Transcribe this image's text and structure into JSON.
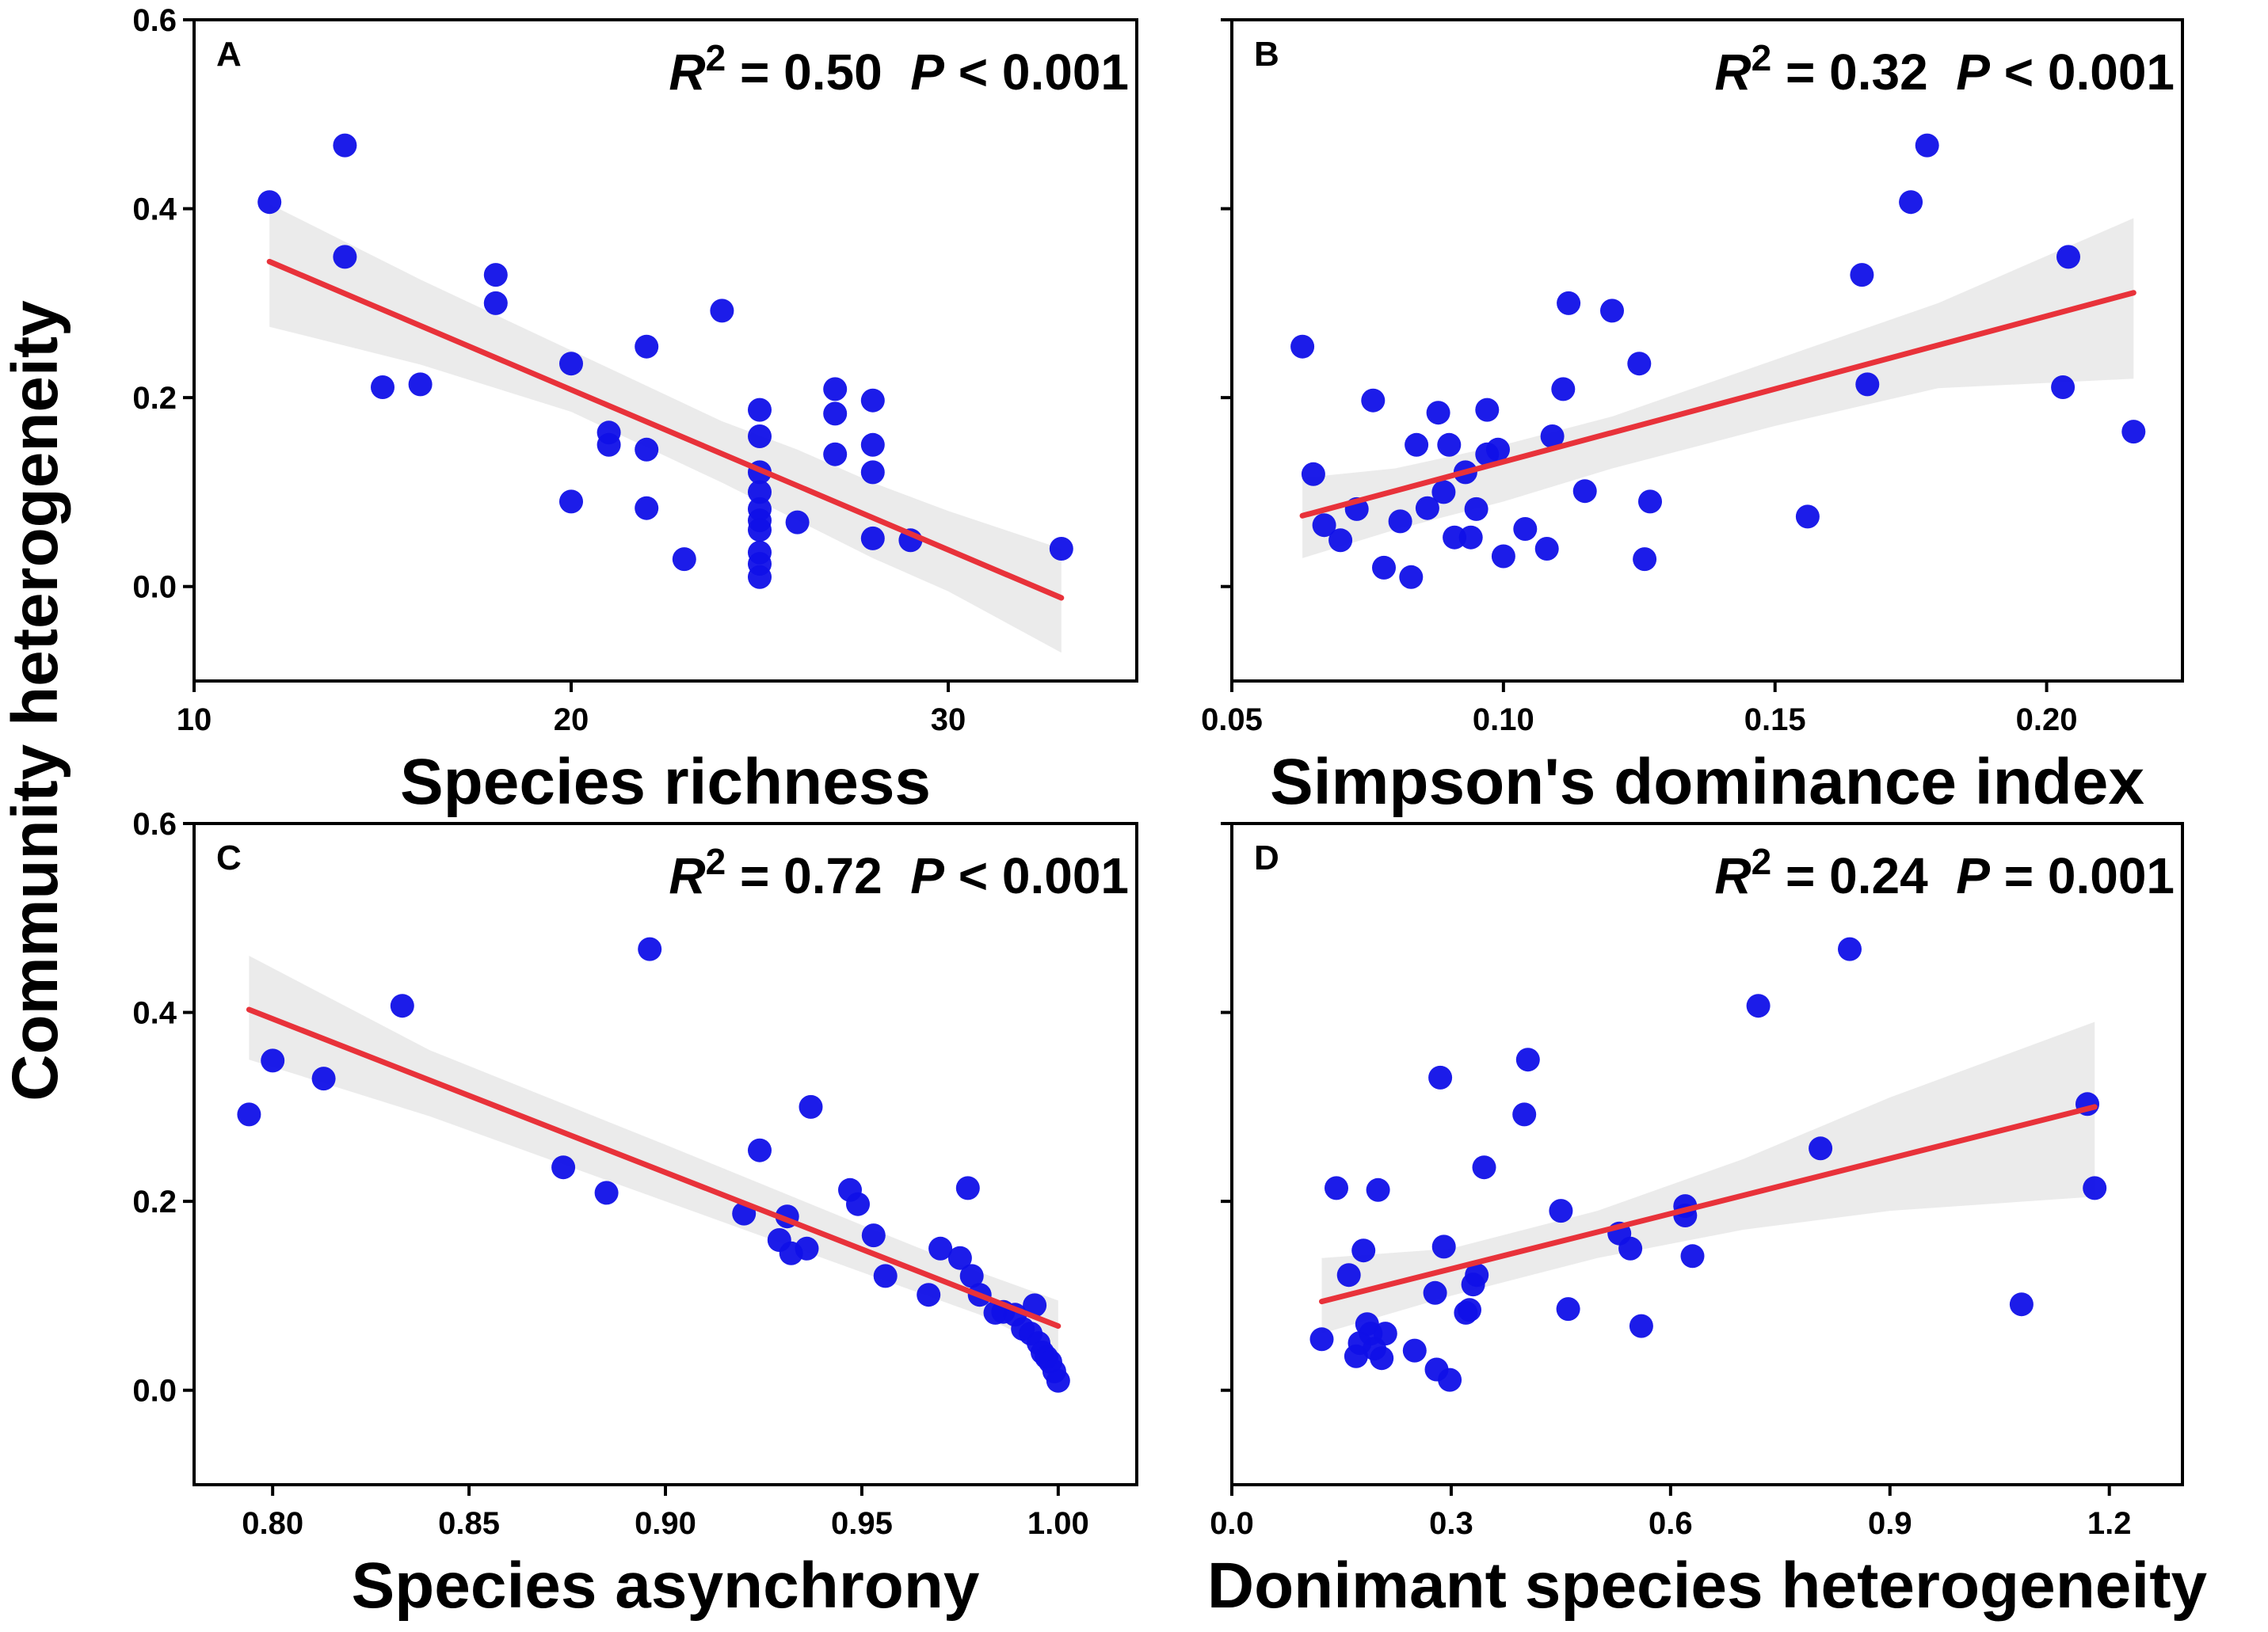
{
  "y_axis_label": "Community heterogeneity",
  "chart_data": [
    {
      "type": "scatter",
      "panel": "A",
      "xlabel": "Species richness",
      "ylabel": "Community heterogeneity",
      "xlim": [
        10,
        35
      ],
      "ylim": [
        -0.1,
        0.6
      ],
      "xticks": [
        10,
        20,
        30
      ],
      "xtick_labels": [
        "10",
        "20",
        "30"
      ],
      "yticks": [
        0.0,
        0.2,
        0.4,
        0.6
      ],
      "ytick_labels": [
        "0.0",
        "0.2",
        "0.4",
        "0.6"
      ],
      "stats": {
        "r2_label": "R",
        "r2_sup": "2",
        "r2_value": " = 0.50",
        "p_label": "P",
        "p_value": " < 0.001"
      },
      "points": [
        [
          12,
          0.407
        ],
        [
          14,
          0.467
        ],
        [
          14,
          0.349
        ],
        [
          15,
          0.211
        ],
        [
          16,
          0.214
        ],
        [
          18,
          0.33
        ],
        [
          18,
          0.3
        ],
        [
          20,
          0.236
        ],
        [
          20,
          0.09
        ],
        [
          21,
          0.163
        ],
        [
          21,
          0.15
        ],
        [
          22,
          0.254
        ],
        [
          22,
          0.145
        ],
        [
          22,
          0.083
        ],
        [
          23,
          0.029
        ],
        [
          24,
          0.292
        ],
        [
          25,
          0.187
        ],
        [
          25,
          0.159
        ],
        [
          25,
          0.121
        ],
        [
          25,
          0.1
        ],
        [
          25,
          0.082
        ],
        [
          25,
          0.07
        ],
        [
          25,
          0.06
        ],
        [
          25,
          0.036
        ],
        [
          25,
          0.024
        ],
        [
          25,
          0.01
        ],
        [
          26,
          0.068
        ],
        [
          27,
          0.209
        ],
        [
          27,
          0.183
        ],
        [
          27,
          0.14
        ],
        [
          28,
          0.197
        ],
        [
          28,
          0.15
        ],
        [
          28,
          0.121
        ],
        [
          28,
          0.051
        ],
        [
          29,
          0.049
        ],
        [
          33,
          0.04
        ]
      ],
      "fit": {
        "x": [
          12,
          33
        ],
        "y": [
          0.344,
          -0.012
        ]
      },
      "ci": {
        "x": [
          12,
          16,
          20,
          24,
          26,
          28,
          30,
          33
        ],
        "lower": [
          0.275,
          0.235,
          0.185,
          0.11,
          0.07,
          0.03,
          -0.005,
          -0.07
        ],
        "upper": [
          0.405,
          0.325,
          0.25,
          0.175,
          0.145,
          0.11,
          0.08,
          0.04
        ]
      }
    },
    {
      "type": "scatter",
      "panel": "B",
      "xlabel": "Simpson's dominance index",
      "ylabel": "Community heterogeneity",
      "xlim": [
        0.05,
        0.225
      ],
      "ylim": [
        -0.1,
        0.6
      ],
      "xticks": [
        0.05,
        0.1,
        0.15,
        0.2
      ],
      "xtick_labels": [
        "0.05",
        "0.10",
        "0.15",
        "0.20"
      ],
      "yticks": [
        0.0,
        0.2,
        0.4,
        0.6
      ],
      "ytick_labels": [
        "",
        "",
        "",
        ""
      ],
      "stats": {
        "r2_label": "R",
        "r2_sup": "2",
        "r2_value": " = 0.32",
        "p_label": "P",
        "p_value": " < 0.001"
      },
      "points": [
        [
          0.063,
          0.254
        ],
        [
          0.065,
          0.119
        ],
        [
          0.067,
          0.065
        ],
        [
          0.07,
          0.049
        ],
        [
          0.073,
          0.082
        ],
        [
          0.076,
          0.197
        ],
        [
          0.078,
          0.02
        ],
        [
          0.081,
          0.069
        ],
        [
          0.083,
          0.01
        ],
        [
          0.084,
          0.15
        ],
        [
          0.086,
          0.083
        ],
        [
          0.088,
          0.184
        ],
        [
          0.089,
          0.1
        ],
        [
          0.09,
          0.15
        ],
        [
          0.091,
          0.052
        ],
        [
          0.093,
          0.121
        ],
        [
          0.094,
          0.052
        ],
        [
          0.095,
          0.082
        ],
        [
          0.097,
          0.14
        ],
        [
          0.097,
          0.187
        ],
        [
          0.099,
          0.145
        ],
        [
          0.1,
          0.032
        ],
        [
          0.104,
          0.061
        ],
        [
          0.108,
          0.04
        ],
        [
          0.109,
          0.159
        ],
        [
          0.111,
          0.209
        ],
        [
          0.112,
          0.3
        ],
        [
          0.115,
          0.101
        ],
        [
          0.12,
          0.292
        ],
        [
          0.125,
          0.236
        ],
        [
          0.126,
          0.029
        ],
        [
          0.127,
          0.09
        ],
        [
          0.156,
          0.074
        ],
        [
          0.166,
          0.33
        ],
        [
          0.167,
          0.214
        ],
        [
          0.175,
          0.407
        ],
        [
          0.178,
          0.467
        ],
        [
          0.203,
          0.211
        ],
        [
          0.204,
          0.349
        ],
        [
          0.216,
          0.164
        ]
      ],
      "fit": {
        "x": [
          0.063,
          0.216
        ],
        "y": [
          0.075,
          0.311
        ]
      },
      "ci": {
        "x": [
          0.063,
          0.08,
          0.1,
          0.12,
          0.15,
          0.18,
          0.216
        ],
        "lower": [
          0.03,
          0.06,
          0.09,
          0.125,
          0.17,
          0.21,
          0.22
        ],
        "upper": [
          0.115,
          0.125,
          0.15,
          0.18,
          0.24,
          0.3,
          0.39
        ]
      }
    },
    {
      "type": "scatter",
      "panel": "C",
      "xlabel": "Species asynchrony",
      "ylabel": "Community heterogeneity",
      "xlim": [
        0.78,
        1.02
      ],
      "ylim": [
        -0.1,
        0.6
      ],
      "xticks": [
        0.8,
        0.85,
        0.9,
        0.95,
        1.0
      ],
      "xtick_labels": [
        "0.80",
        "0.85",
        "0.90",
        "0.95",
        "1.00"
      ],
      "yticks": [
        0.0,
        0.2,
        0.4,
        0.6
      ],
      "ytick_labels": [
        "0.0",
        "0.2",
        "0.4",
        "0.6"
      ],
      "stats": {
        "r2_label": "R",
        "r2_sup": "2",
        "r2_value": " = 0.72",
        "p_label": "P",
        "p_value": " < 0.001"
      },
      "points": [
        [
          0.794,
          0.292
        ],
        [
          0.8,
          0.349
        ],
        [
          0.813,
          0.33
        ],
        [
          0.833,
          0.407
        ],
        [
          0.874,
          0.236
        ],
        [
          0.885,
          0.209
        ],
        [
          0.896,
          0.467
        ],
        [
          0.92,
          0.187
        ],
        [
          0.924,
          0.254
        ],
        [
          0.929,
          0.159
        ],
        [
          0.931,
          0.184
        ],
        [
          0.932,
          0.145
        ],
        [
          0.936,
          0.15
        ],
        [
          0.937,
          0.3
        ],
        [
          0.947,
          0.212
        ],
        [
          0.949,
          0.197
        ],
        [
          0.953,
          0.164
        ],
        [
          0.956,
          0.121
        ],
        [
          0.967,
          0.101
        ],
        [
          0.97,
          0.15
        ],
        [
          0.975,
          0.14
        ],
        [
          0.977,
          0.214
        ],
        [
          0.978,
          0.121
        ],
        [
          0.98,
          0.101
        ],
        [
          0.984,
          0.082
        ],
        [
          0.986,
          0.083
        ],
        [
          0.989,
          0.08
        ],
        [
          0.991,
          0.065
        ],
        [
          0.993,
          0.06
        ],
        [
          0.994,
          0.09
        ],
        [
          0.995,
          0.05
        ],
        [
          0.996,
          0.04
        ],
        [
          0.997,
          0.035
        ],
        [
          0.998,
          0.03
        ],
        [
          0.999,
          0.02
        ],
        [
          1.0,
          0.01
        ]
      ],
      "fit": {
        "x": [
          0.794,
          1.0
        ],
        "y": [
          0.403,
          0.068
        ]
      },
      "ci": {
        "x": [
          0.794,
          0.84,
          0.9,
          0.95,
          0.98,
          1.0
        ],
        "lower": [
          0.35,
          0.29,
          0.2,
          0.125,
          0.08,
          0.04
        ],
        "upper": [
          0.46,
          0.36,
          0.26,
          0.175,
          0.125,
          0.095
        ]
      }
    },
    {
      "type": "scatter",
      "panel": "D",
      "xlabel": "Donimant species heterogeneity",
      "ylabel": "Community heterogeneity",
      "xlim": [
        0.0,
        1.3
      ],
      "ylim": [
        -0.1,
        0.6
      ],
      "xticks": [
        0.0,
        0.3,
        0.6,
        0.9,
        1.2
      ],
      "xtick_labels": [
        "0.0",
        "0.3",
        "0.6",
        "0.9",
        "1.2"
      ],
      "yticks": [
        0.0,
        0.2,
        0.4,
        0.6
      ],
      "ytick_labels": [
        "",
        "",
        "",
        ""
      ],
      "stats": {
        "r2_label": "R",
        "r2_sup": "2",
        "r2_value": " = 0.24",
        "p_label": "P",
        "p_value": " = 0.001"
      },
      "points": [
        [
          0.123,
          0.054
        ],
        [
          0.143,
          0.214
        ],
        [
          0.16,
          0.122
        ],
        [
          0.17,
          0.036
        ],
        [
          0.175,
          0.05
        ],
        [
          0.18,
          0.148
        ],
        [
          0.185,
          0.07
        ],
        [
          0.19,
          0.06
        ],
        [
          0.195,
          0.044
        ],
        [
          0.2,
          0.212
        ],
        [
          0.205,
          0.034
        ],
        [
          0.21,
          0.06
        ],
        [
          0.25,
          0.042
        ],
        [
          0.278,
          0.103
        ],
        [
          0.28,
          0.022
        ],
        [
          0.285,
          0.331
        ],
        [
          0.29,
          0.152
        ],
        [
          0.298,
          0.011
        ],
        [
          0.32,
          0.082
        ],
        [
          0.325,
          0.085
        ],
        [
          0.33,
          0.112
        ],
        [
          0.335,
          0.122
        ],
        [
          0.345,
          0.236
        ],
        [
          0.4,
          0.292
        ],
        [
          0.405,
          0.35
        ],
        [
          0.45,
          0.19
        ],
        [
          0.46,
          0.086
        ],
        [
          0.53,
          0.166
        ],
        [
          0.545,
          0.15
        ],
        [
          0.56,
          0.068
        ],
        [
          0.62,
          0.195
        ],
        [
          0.62,
          0.185
        ],
        [
          0.63,
          0.142
        ],
        [
          0.72,
          0.407
        ],
        [
          0.805,
          0.256
        ],
        [
          0.845,
          0.467
        ],
        [
          1.08,
          0.091
        ],
        [
          1.17,
          0.303
        ],
        [
          1.18,
          0.214
        ]
      ],
      "fit": {
        "x": [
          0.123,
          1.18
        ],
        "y": [
          0.094,
          0.3
        ]
      },
      "ci": {
        "x": [
          0.123,
          0.3,
          0.5,
          0.7,
          0.9,
          1.18
        ],
        "lower": [
          0.06,
          0.1,
          0.14,
          0.17,
          0.19,
          0.205
        ],
        "upper": [
          0.14,
          0.15,
          0.19,
          0.245,
          0.31,
          0.39
        ]
      }
    }
  ]
}
